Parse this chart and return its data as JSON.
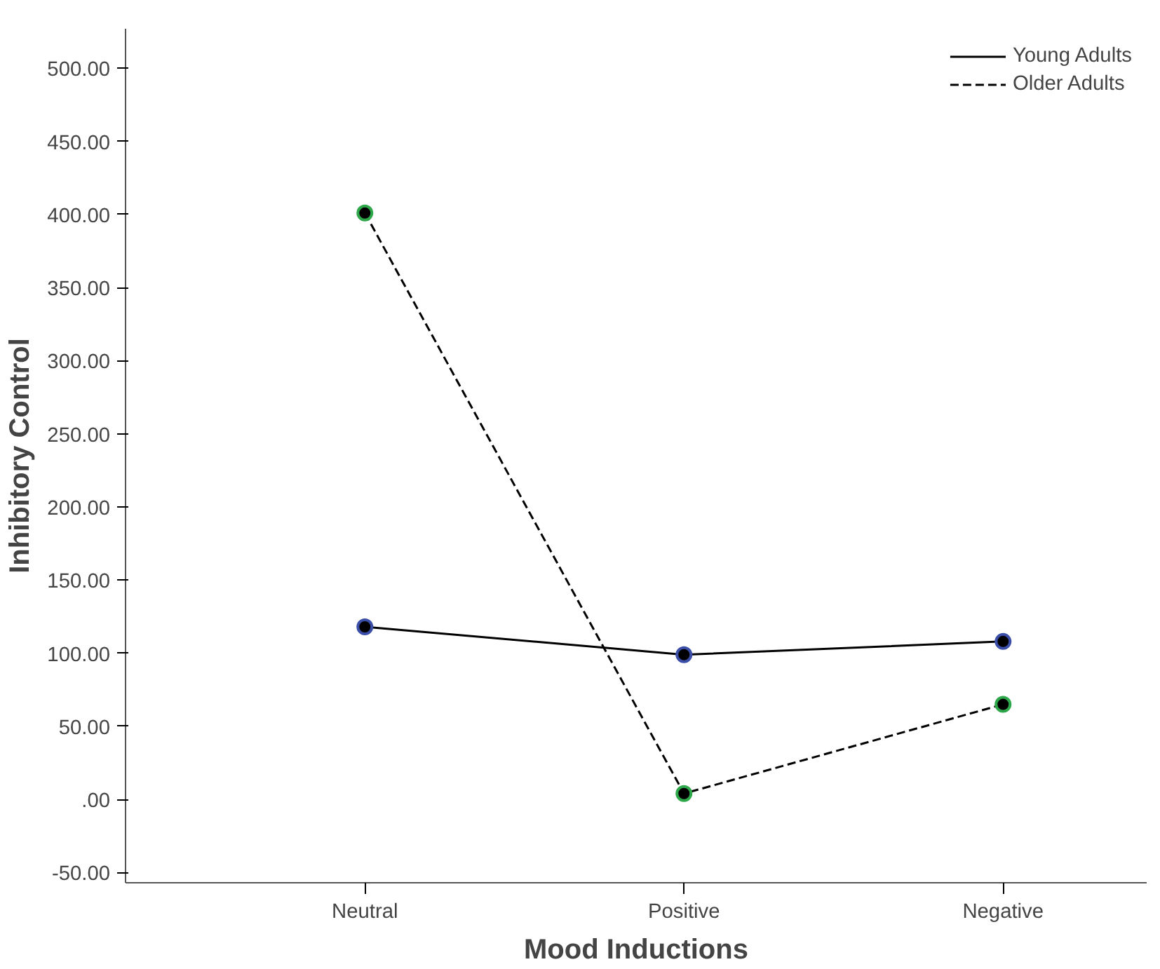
{
  "chart_data": {
    "type": "line",
    "xlabel": "Mood Inductions",
    "ylabel": "Inhibitory Control",
    "categories": [
      "Neutral",
      "Positive",
      "Negative"
    ],
    "series": [
      {
        "name": "Young Adults",
        "color": "#000000",
        "line_style": "solid",
        "values": [
          118,
          99,
          108
        ]
      },
      {
        "name": "Older Adults",
        "color": "#000000",
        "line_style": "dashed",
        "values": [
          401,
          4,
          65
        ]
      }
    ],
    "ylim": [
      -57,
      527
    ],
    "yticks": [
      {
        "value": -50,
        "label": "-50.00"
      },
      {
        "value": 0,
        "label": ".00"
      },
      {
        "value": 50,
        "label": "50.00"
      },
      {
        "value": 100,
        "label": "100.00"
      },
      {
        "value": 150,
        "label": "150.00"
      },
      {
        "value": 200,
        "label": "200.00"
      },
      {
        "value": 250,
        "label": "250.00"
      },
      {
        "value": 300,
        "label": "300.00"
      },
      {
        "value": 350,
        "label": "350.00"
      },
      {
        "value": 400,
        "label": "400.00"
      },
      {
        "value": 450,
        "label": "450.00"
      },
      {
        "value": 500,
        "label": "500.00"
      }
    ],
    "grid": false,
    "legend": "top right",
    "marker": "circle"
  }
}
